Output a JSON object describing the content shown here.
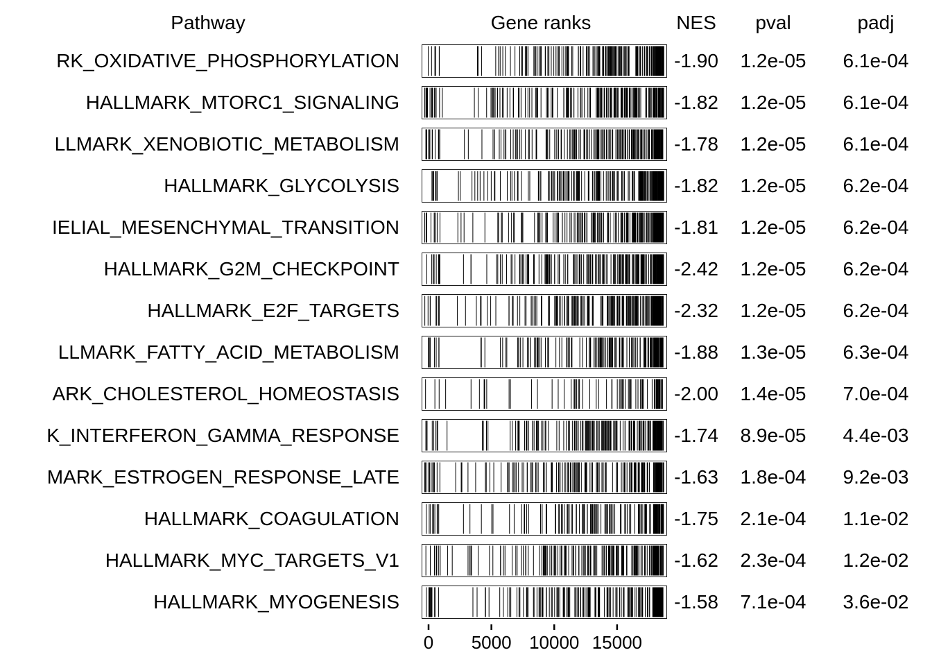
{
  "chart_data": {
    "type": "table",
    "title": "",
    "columns": [
      "Pathway",
      "Gene ranks",
      "NES",
      "pval",
      "padj"
    ],
    "header": {
      "pathway": "Pathway",
      "gene_ranks": "Gene ranks",
      "nes": "NES",
      "pval": "pval",
      "padj": "padj"
    },
    "axis": {
      "x_ticks": [
        0,
        5000,
        10000,
        15000
      ],
      "max_rank": 19200,
      "xlabel": ""
    },
    "rows": [
      {
        "pathway": "RK_OXIDATIVE_PHOSPHORYLATION",
        "nes": "-1.90",
        "pval": "1.2e-05",
        "padj": "6.1e-04",
        "barcode": {
          "seed": 3,
          "n": 200,
          "left": 6
        }
      },
      {
        "pathway": "HALLMARK_MTORC1_SIGNALING",
        "nes": "-1.82",
        "pval": "1.2e-05",
        "padj": "6.1e-04",
        "barcode": {
          "seed": 7,
          "n": 200,
          "left": 14
        }
      },
      {
        "pathway": "LLMARK_XENOBIOTIC_METABOLISM",
        "nes": "-1.78",
        "pval": "1.2e-05",
        "padj": "6.1e-04",
        "barcode": {
          "seed": 11,
          "n": 200,
          "left": 12
        }
      },
      {
        "pathway": "HALLMARK_GLYCOLYSIS",
        "nes": "-1.82",
        "pval": "1.2e-05",
        "padj": "6.2e-04",
        "barcode": {
          "seed": 13,
          "n": 200,
          "left": 7
        }
      },
      {
        "pathway": "IELIAL_MESENCHYMAL_TRANSITION",
        "nes": "-1.81",
        "pval": "1.2e-05",
        "padj": "6.2e-04",
        "barcode": {
          "seed": 17,
          "n": 200,
          "left": 10
        }
      },
      {
        "pathway": "HALLMARK_G2M_CHECKPOINT",
        "nes": "-2.42",
        "pval": "1.2e-05",
        "padj": "6.2e-04",
        "barcode": {
          "seed": 19,
          "n": 220,
          "left": 9
        }
      },
      {
        "pathway": "HALLMARK_E2F_TARGETS",
        "nes": "-2.32",
        "pval": "1.2e-05",
        "padj": "6.2e-04",
        "barcode": {
          "seed": 23,
          "n": 220,
          "left": 8
        }
      },
      {
        "pathway": "LLMARK_FATTY_ACID_METABOLISM",
        "nes": "-1.88",
        "pval": "1.3e-05",
        "padj": "6.3e-04",
        "barcode": {
          "seed": 29,
          "n": 160,
          "left": 8
        }
      },
      {
        "pathway": "ARK_CHOLESTEROL_HOMEOSTASIS",
        "nes": "-2.00",
        "pval": "1.4e-05",
        "padj": "7.0e-04",
        "barcode": {
          "seed": 31,
          "n": 70,
          "left": 3
        }
      },
      {
        "pathway": "K_INTERFERON_GAMMA_RESPONSE",
        "nes": "-1.74",
        "pval": "8.9e-05",
        "padj": "4.4e-03",
        "barcode": {
          "seed": 37,
          "n": 190,
          "left": 9
        }
      },
      {
        "pathway": "MARK_ESTROGEN_RESPONSE_LATE",
        "nes": "-1.63",
        "pval": "1.8e-04",
        "padj": "9.2e-03",
        "barcode": {
          "seed": 41,
          "n": 190,
          "left": 12
        }
      },
      {
        "pathway": "HALLMARK_COAGULATION",
        "nes": "-1.75",
        "pval": "2.1e-04",
        "padj": "1.1e-02",
        "barcode": {
          "seed": 43,
          "n": 140,
          "left": 9
        }
      },
      {
        "pathway": "HALLMARK_MYC_TARGETS_V1",
        "nes": "-1.62",
        "pval": "2.3e-04",
        "padj": "1.2e-02",
        "barcode": {
          "seed": 47,
          "n": 190,
          "left": 7
        }
      },
      {
        "pathway": "HALLMARK_MYOGENESIS",
        "nes": "-1.58",
        "pval": "7.1e-04",
        "padj": "3.6e-02",
        "barcode": {
          "seed": 53,
          "n": 200,
          "left": 14
        }
      }
    ]
  }
}
